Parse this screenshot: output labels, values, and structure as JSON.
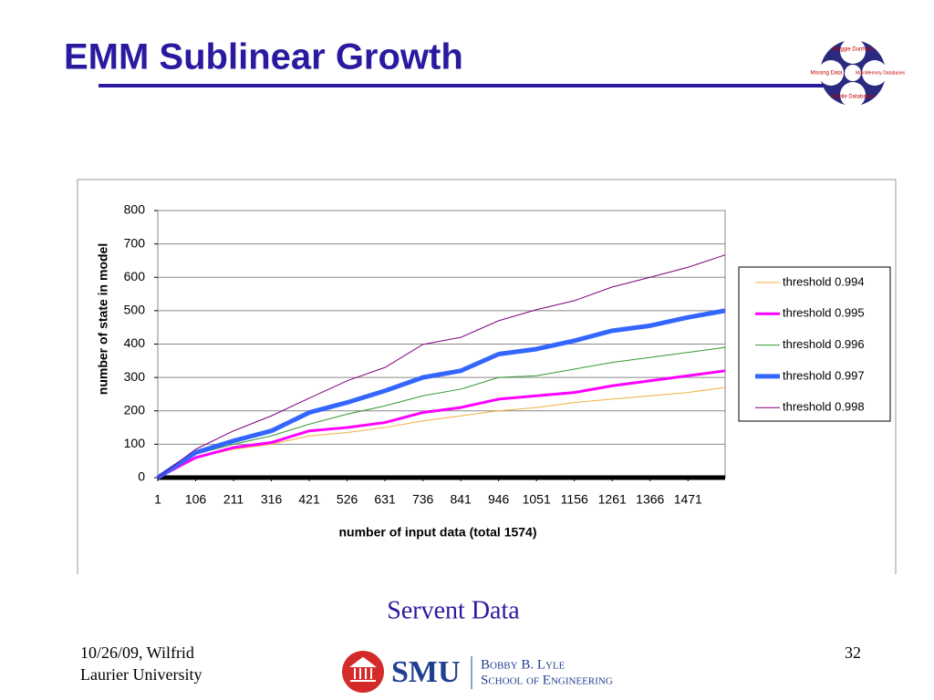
{
  "slide_title": "EMM  Sublinear Growth",
  "caption": "Servent Data",
  "footer": {
    "date_line1": "10/26/09, Wilfrid",
    "date_line2": "Laurier University",
    "page": "32"
  },
  "logo_top": {
    "center": "Maggie Dunham",
    "left": "Missing Data",
    "right": "MainMemory Databases",
    "bottom": "Mobile Databases"
  },
  "logo_bottom": {
    "name": "SMU",
    "line1": "Bobby B. Lyle",
    "line2": "School of Engineering"
  },
  "chart_data": {
    "type": "line",
    "xlabel": "number of input data (total 1574)",
    "ylabel": "number of state in model",
    "x": [
      1,
      106,
      211,
      316,
      421,
      526,
      631,
      736,
      841,
      946,
      1051,
      1156,
      1261,
      1366,
      1471,
      1574
    ],
    "xlim": [
      1,
      1574
    ],
    "xticks": [
      1,
      106,
      211,
      316,
      421,
      526,
      631,
      736,
      841,
      946,
      1051,
      1156,
      1261,
      1366,
      1471
    ],
    "ylim": [
      0,
      800
    ],
    "yticks": [
      0,
      100,
      200,
      300,
      400,
      500,
      600,
      700,
      800
    ],
    "grid": true,
    "legend": "right",
    "series": [
      {
        "name": "threshold 0.994",
        "color": "#f0b040",
        "values": [
          0,
          60,
          85,
          100,
          125,
          135,
          150,
          170,
          185,
          200,
          210,
          225,
          235,
          245,
          255,
          270
        ]
      },
      {
        "name": "threshold 0.995",
        "color": "#ff00ff",
        "values": [
          0,
          60,
          90,
          105,
          140,
          150,
          165,
          195,
          210,
          235,
          245,
          255,
          275,
          290,
          305,
          320
        ]
      },
      {
        "name": "threshold 0.996",
        "color": "#339933",
        "values": [
          0,
          70,
          100,
          125,
          160,
          190,
          215,
          245,
          265,
          300,
          305,
          325,
          345,
          360,
          375,
          390
        ]
      },
      {
        "name": "threshold 0.997",
        "color": "#3366ff",
        "values": [
          0,
          75,
          110,
          140,
          195,
          225,
          260,
          300,
          320,
          370,
          385,
          410,
          440,
          455,
          480,
          500
        ]
      },
      {
        "name": "threshold 0.998",
        "color": "#800080",
        "values": [
          0,
          85,
          140,
          185,
          238,
          290,
          330,
          399,
          420,
          470,
          503,
          530,
          571,
          600,
          630,
          667
        ]
      }
    ]
  }
}
